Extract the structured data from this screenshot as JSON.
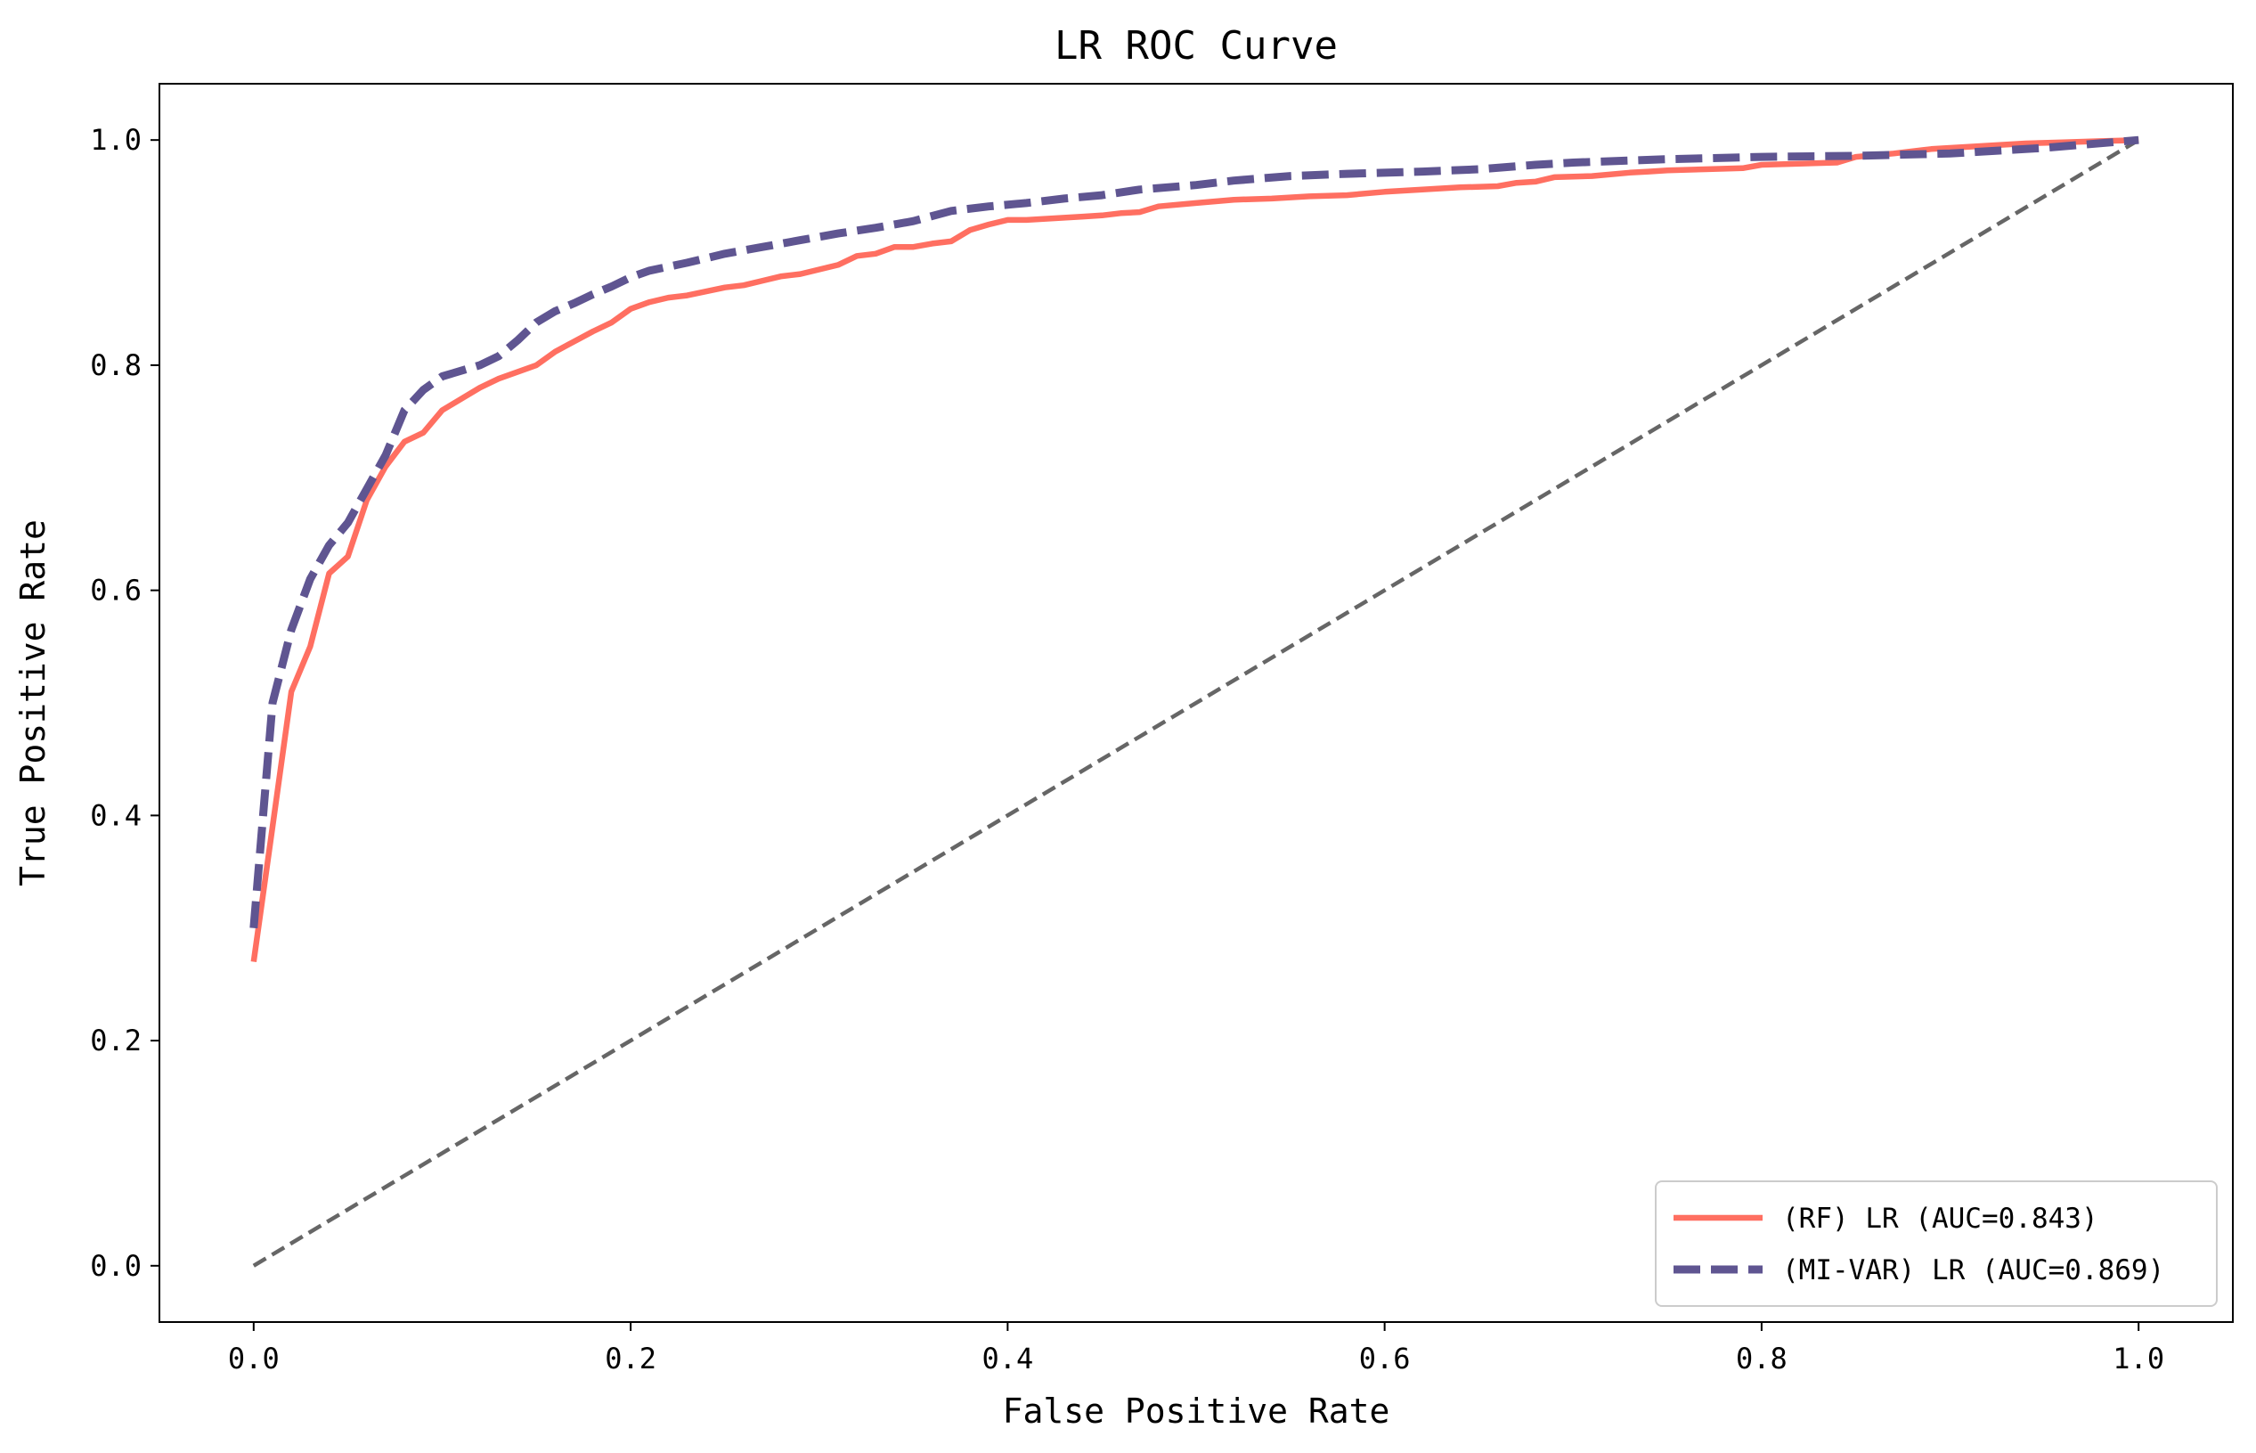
{
  "chart_data": {
    "type": "line",
    "title": "LR ROC Curve",
    "xlabel": "False Positive Rate",
    "ylabel": "True Positive Rate",
    "xlim": [
      -0.05,
      1.05
    ],
    "ylim": [
      -0.05,
      1.05
    ],
    "xticks": [
      0.0,
      0.2,
      0.4,
      0.6,
      0.8,
      1.0
    ],
    "yticks": [
      0.0,
      0.2,
      0.4,
      0.6,
      0.8,
      1.0
    ],
    "xtick_labels": [
      "0.0",
      "0.2",
      "0.4",
      "0.6",
      "0.8",
      "1.0"
    ],
    "ytick_labels": [
      "0.0",
      "0.2",
      "0.4",
      "0.6",
      "0.8",
      "1.0"
    ],
    "grid": false,
    "legend_position": "lower-right",
    "series": [
      {
        "name": "(RF) LR (AUC=0.843)",
        "color": "#FF6F61",
        "style": "solid",
        "x": [
          0.0,
          0.01,
          0.02,
          0.03,
          0.04,
          0.05,
          0.06,
          0.07,
          0.08,
          0.09,
          0.1,
          0.12,
          0.13,
          0.15,
          0.16,
          0.18,
          0.19,
          0.2,
          0.21,
          0.22,
          0.23,
          0.25,
          0.26,
          0.27,
          0.28,
          0.29,
          0.31,
          0.32,
          0.33,
          0.34,
          0.35,
          0.36,
          0.37,
          0.38,
          0.39,
          0.4,
          0.41,
          0.42,
          0.44,
          0.45,
          0.46,
          0.47,
          0.48,
          0.5,
          0.52,
          0.54,
          0.56,
          0.58,
          0.6,
          0.62,
          0.64,
          0.66,
          0.67,
          0.68,
          0.69,
          0.71,
          0.73,
          0.74,
          0.75,
          0.77,
          0.79,
          0.8,
          0.82,
          0.84,
          0.85,
          0.87,
          0.89,
          0.9,
          0.92,
          0.94,
          0.96,
          0.98,
          1.0
        ],
        "y": [
          0.27,
          0.39,
          0.51,
          0.55,
          0.615,
          0.63,
          0.68,
          0.71,
          0.732,
          0.74,
          0.76,
          0.78,
          0.788,
          0.8,
          0.812,
          0.83,
          0.838,
          0.85,
          0.856,
          0.86,
          0.862,
          0.869,
          0.871,
          0.875,
          0.879,
          0.881,
          0.889,
          0.897,
          0.899,
          0.905,
          0.905,
          0.908,
          0.91,
          0.92,
          0.925,
          0.929,
          0.929,
          0.93,
          0.932,
          0.933,
          0.935,
          0.936,
          0.941,
          0.944,
          0.947,
          0.948,
          0.95,
          0.951,
          0.954,
          0.956,
          0.958,
          0.959,
          0.962,
          0.963,
          0.967,
          0.968,
          0.971,
          0.972,
          0.973,
          0.974,
          0.975,
          0.978,
          0.979,
          0.98,
          0.985,
          0.988,
          0.992,
          0.993,
          0.995,
          0.997,
          0.998,
          0.999,
          1.0
        ]
      },
      {
        "name": "(MI-VAR) LR (AUC=0.869)",
        "color": "#5F5591",
        "style": "dashed",
        "x": [
          0.0,
          0.01,
          0.02,
          0.03,
          0.04,
          0.05,
          0.06,
          0.07,
          0.08,
          0.09,
          0.1,
          0.12,
          0.13,
          0.14,
          0.15,
          0.16,
          0.17,
          0.18,
          0.19,
          0.2,
          0.21,
          0.23,
          0.25,
          0.27,
          0.29,
          0.31,
          0.33,
          0.35,
          0.37,
          0.39,
          0.41,
          0.43,
          0.45,
          0.47,
          0.5,
          0.52,
          0.55,
          0.58,
          0.62,
          0.65,
          0.68,
          0.7,
          0.75,
          0.8,
          0.85,
          0.9,
          0.95,
          1.0
        ],
        "y": [
          0.3,
          0.5,
          0.565,
          0.61,
          0.64,
          0.66,
          0.69,
          0.72,
          0.76,
          0.778,
          0.79,
          0.8,
          0.808,
          0.822,
          0.838,
          0.848,
          0.855,
          0.863,
          0.87,
          0.878,
          0.884,
          0.891,
          0.899,
          0.905,
          0.911,
          0.917,
          0.922,
          0.928,
          0.937,
          0.941,
          0.944,
          0.948,
          0.951,
          0.956,
          0.96,
          0.964,
          0.968,
          0.97,
          0.972,
          0.974,
          0.978,
          0.98,
          0.983,
          0.985,
          0.986,
          0.988,
          0.993,
          1.0
        ]
      },
      {
        "name": "",
        "color": "#666666",
        "style": "dashed-thin",
        "x": [
          0.0,
          1.0
        ],
        "y": [
          0.0,
          1.0
        ]
      }
    ]
  }
}
